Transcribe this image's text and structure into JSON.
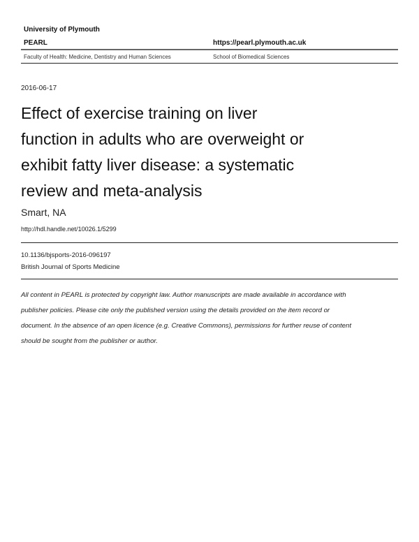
{
  "header": {
    "institution": "University of Plymouth",
    "repository": "PEARL",
    "repository_url": "https://pearl.plymouth.ac.uk",
    "faculty": "Faculty of Health: Medicine, Dentistry and Human Sciences",
    "school": "School of Biomedical Sciences"
  },
  "record": {
    "date": "2016-06-17",
    "title_lines": [
      "Effect of exercise training on liver",
      "function in adults who are overweight or",
      "exhibit fatty liver disease: a systematic",
      "review and meta-analysis"
    ],
    "author": "Smart, NA",
    "handle": "http://hdl.handle.net/10026.1/5299",
    "doi": "10.1136/bjsports-2016-096197",
    "journal": "British Journal of Sports Medicine"
  },
  "disclaimer_lines": [
    "All content in PEARL is protected by copyright law. Author manuscripts are made available in accordance with",
    "publisher policies. Please cite only the published version using the details provided on the item record or",
    "document. In the absence of an open licence (e.g. Creative Commons), permissions for further reuse of content",
    "should be sought from the publisher or author."
  ]
}
